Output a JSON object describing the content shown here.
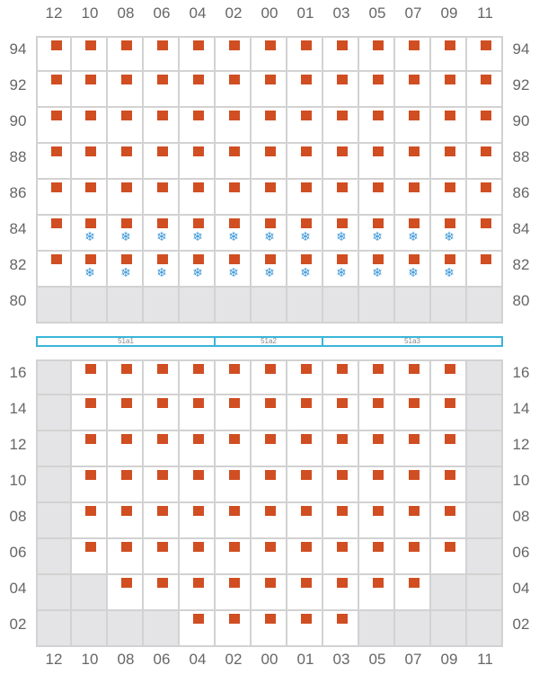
{
  "columns": [
    "12",
    "10",
    "08",
    "06",
    "04",
    "02",
    "00",
    "01",
    "03",
    "05",
    "07",
    "09",
    "11"
  ],
  "top_block": {
    "rows": [
      {
        "label": "94",
        "cells": [
          "b",
          "b",
          "b",
          "b",
          "b",
          "b",
          "b",
          "b",
          "b",
          "b",
          "b",
          "b",
          "b"
        ]
      },
      {
        "label": "92",
        "cells": [
          "b",
          "b",
          "b",
          "b",
          "b",
          "b",
          "b",
          "b",
          "b",
          "b",
          "b",
          "b",
          "b"
        ]
      },
      {
        "label": "90",
        "cells": [
          "b",
          "b",
          "b",
          "b",
          "b",
          "b",
          "b",
          "b",
          "b",
          "b",
          "b",
          "b",
          "b"
        ]
      },
      {
        "label": "88",
        "cells": [
          "b",
          "b",
          "b",
          "b",
          "b",
          "b",
          "b",
          "b",
          "b",
          "b",
          "b",
          "b",
          "b"
        ]
      },
      {
        "label": "86",
        "cells": [
          "b",
          "b",
          "b",
          "b",
          "b",
          "b",
          "b",
          "b",
          "b",
          "b",
          "b",
          "b",
          "b"
        ]
      },
      {
        "label": "84",
        "cells": [
          "b",
          "bs",
          "bs",
          "bs",
          "bs",
          "bs",
          "bs",
          "bs",
          "bs",
          "bs",
          "bs",
          "bs",
          "b"
        ]
      },
      {
        "label": "82",
        "cells": [
          "b",
          "bs",
          "bs",
          "bs",
          "bs",
          "bs",
          "bs",
          "bs",
          "bs",
          "bs",
          "bs",
          "bs",
          "b"
        ]
      },
      {
        "label": "80",
        "cells": [
          "x",
          "x",
          "x",
          "x",
          "x",
          "x",
          "x",
          "x",
          "x",
          "x",
          "x",
          "x",
          "x"
        ]
      }
    ]
  },
  "zones": [
    {
      "label": "51a1",
      "span": 5
    },
    {
      "label": "51a2",
      "span": 3
    },
    {
      "label": "51a3",
      "span": 5
    }
  ],
  "bottom_block": {
    "rows": [
      {
        "label": "16",
        "cells": [
          "x",
          "b",
          "b",
          "b",
          "b",
          "b",
          "b",
          "b",
          "b",
          "b",
          "b",
          "b",
          "x"
        ]
      },
      {
        "label": "14",
        "cells": [
          "x",
          "b",
          "b",
          "b",
          "b",
          "b",
          "b",
          "b",
          "b",
          "b",
          "b",
          "b",
          "x"
        ]
      },
      {
        "label": "12",
        "cells": [
          "x",
          "b",
          "b",
          "b",
          "b",
          "b",
          "b",
          "b",
          "b",
          "b",
          "b",
          "b",
          "x"
        ]
      },
      {
        "label": "10",
        "cells": [
          "x",
          "b",
          "b",
          "b",
          "b",
          "b",
          "b",
          "b",
          "b",
          "b",
          "b",
          "b",
          "x"
        ]
      },
      {
        "label": "08",
        "cells": [
          "x",
          "b",
          "b",
          "b",
          "b",
          "b",
          "b",
          "b",
          "b",
          "b",
          "b",
          "b",
          "x"
        ]
      },
      {
        "label": "06",
        "cells": [
          "x",
          "b",
          "b",
          "b",
          "b",
          "b",
          "b",
          "b",
          "b",
          "b",
          "b",
          "b",
          "x"
        ]
      },
      {
        "label": "04",
        "cells": [
          "x",
          "x",
          "b",
          "b",
          "b",
          "b",
          "b",
          "b",
          "b",
          "b",
          "b",
          "x",
          "x"
        ]
      },
      {
        "label": "02",
        "cells": [
          "x",
          "x",
          "x",
          "x",
          "b",
          "b",
          "b",
          "b",
          "b",
          "x",
          "x",
          "x",
          "x"
        ]
      }
    ]
  },
  "legend": {
    "box_color": "#d04e22",
    "snow_color": "#3b97d8",
    "empty_color": "#e4e4e6",
    "zone_color": "#3ab5d8",
    "snow_icon": "snowflake-icon",
    "box_icon": "container-icon"
  }
}
